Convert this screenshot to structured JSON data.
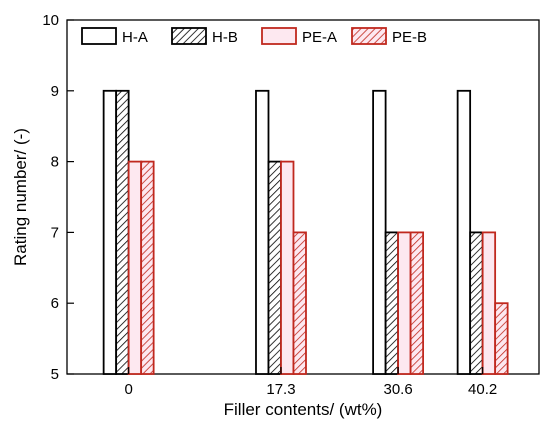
{
  "chart_data": {
    "type": "bar",
    "xlabel": "Filler contents/ (wt%)",
    "ylabel": "Rating number/ (-)",
    "ylim": [
      5,
      10
    ],
    "yticks": [
      "5",
      "6",
      "7",
      "8",
      "9",
      "10"
    ],
    "x": [
      0,
      17.3,
      30.6,
      40.2
    ],
    "x_tick_labels": [
      "0",
      "17.3",
      "30.6",
      "40.2"
    ],
    "series": [
      {
        "name": "H-A",
        "values": [
          9,
          9,
          9,
          9
        ],
        "stroke": "#000000",
        "fill": "#ffffff",
        "hatch": false
      },
      {
        "name": "H-B",
        "values": [
          9,
          8,
          7,
          7
        ],
        "stroke": "#000000",
        "fill": "#ffffff",
        "hatch": true
      },
      {
        "name": "PE-A",
        "values": [
          8,
          8,
          7,
          7
        ],
        "stroke": "#c0281e",
        "fill": "#fde8f0",
        "hatch": false
      },
      {
        "name": "PE-B",
        "values": [
          8,
          7,
          7,
          6
        ],
        "stroke": "#c0281e",
        "fill": "#fde8f0",
        "hatch": true
      }
    ],
    "legend_position": "top",
    "grid": false
  }
}
